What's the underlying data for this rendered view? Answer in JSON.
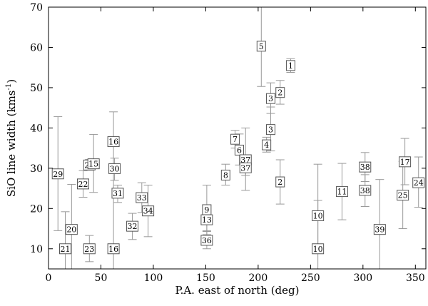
{
  "chart_data": {
    "type": "scatter",
    "title": "",
    "xlabel": "P.A. east of north (deg)",
    "ylabel": "SiO line width (kms",
    "ylabel_sup": "-1",
    "ylabel_close": ")",
    "xlim": [
      0,
      360
    ],
    "ylim": [
      5,
      70
    ],
    "xticks": [
      0,
      50,
      100,
      150,
      200,
      250,
      300,
      350
    ],
    "yticks": [
      10,
      20,
      30,
      40,
      50,
      60,
      70
    ],
    "grid": false,
    "marker": "numbered-box",
    "errorbar_color": "#999999",
    "points": [
      {
        "label": "29",
        "x": 9,
        "y": 28.6,
        "ylo": 14.5,
        "yhi": 42.8
      },
      {
        "label": "21",
        "x": 16,
        "y": 10.0,
        "ylo": 5.0,
        "yhi": 19.2
      },
      {
        "label": "20",
        "x": 22,
        "y": 14.8,
        "ylo": 5.0,
        "yhi": 26.0
      },
      {
        "label": "22",
        "x": 33,
        "y": 26.1,
        "ylo": 22.8,
        "yhi": 29.4
      },
      {
        "label": "23",
        "x": 39,
        "y": 10.0,
        "ylo": 6.8,
        "yhi": 13.3
      },
      {
        "label": "26",
        "x": 39,
        "y": 30.8,
        "ylo": 29.5,
        "yhi": 32.2
      },
      {
        "label": "15",
        "x": 43,
        "y": 31.1,
        "ylo": 24.0,
        "yhi": 38.4
      },
      {
        "label": "16",
        "x": 62,
        "y": 36.6,
        "ylo": 29.1,
        "yhi": 44.0
      },
      {
        "label": "30",
        "x": 63,
        "y": 29.9,
        "ylo": 27.0,
        "yhi": 32.5
      },
      {
        "label": "16",
        "x": 62,
        "y": 10.0,
        "ylo": 5.0,
        "yhi": 29.0
      },
      {
        "label": "31",
        "x": 66,
        "y": 23.8,
        "ylo": 21.5,
        "yhi": 25.8
      },
      {
        "label": "32",
        "x": 80,
        "y": 15.6,
        "ylo": 12.3,
        "yhi": 18.8
      },
      {
        "label": "33",
        "x": 89,
        "y": 22.7,
        "ylo": 19.0,
        "yhi": 26.4
      },
      {
        "label": "34",
        "x": 95,
        "y": 19.4,
        "ylo": 13.0,
        "yhi": 25.8
      },
      {
        "label": "9",
        "x": 151,
        "y": 19.7,
        "ylo": 13.5,
        "yhi": 25.8
      },
      {
        "label": "13",
        "x": 151,
        "y": 17.2,
        "ylo": 14.5,
        "yhi": 19.4
      },
      {
        "label": "36",
        "x": 151,
        "y": 12.1,
        "ylo": 10.0,
        "yhi": 14.3
      },
      {
        "label": "8",
        "x": 169,
        "y": 28.3,
        "ylo": 25.8,
        "yhi": 31.0
      },
      {
        "label": "7",
        "x": 178,
        "y": 37.2,
        "ylo": 35.0,
        "yhi": 39.4
      },
      {
        "label": "6",
        "x": 182,
        "y": 34.5,
        "ylo": 30.8,
        "yhi": 38.5
      },
      {
        "label": "37",
        "x": 188,
        "y": 32.1,
        "ylo": 24.5,
        "yhi": 40.0
      },
      {
        "label": "37",
        "x": 188,
        "y": 30.1,
        "ylo": 28.2,
        "yhi": 32.0
      },
      {
        "label": "5",
        "x": 203,
        "y": 60.3,
        "ylo": 50.3,
        "yhi": 70.0
      },
      {
        "label": "4",
        "x": 208,
        "y": 35.8,
        "ylo": 34.0,
        "yhi": 37.7
      },
      {
        "label": "3",
        "x": 212,
        "y": 47.3,
        "ylo": 43.6,
        "yhi": 51.2
      },
      {
        "label": "3",
        "x": 212,
        "y": 39.6,
        "ylo": 34.3,
        "yhi": 45.2
      },
      {
        "label": "2",
        "x": 221,
        "y": 48.8,
        "ylo": 45.9,
        "yhi": 51.8
      },
      {
        "label": "2",
        "x": 221,
        "y": 26.6,
        "ylo": 21.1,
        "yhi": 32.1
      },
      {
        "label": "1",
        "x": 231,
        "y": 55.5,
        "ylo": 53.8,
        "yhi": 57.2
      },
      {
        "label": "10",
        "x": 257,
        "y": 18.2,
        "ylo": 10.0,
        "yhi": 31.0
      },
      {
        "label": "10",
        "x": 257,
        "y": 10.0,
        "ylo": 5.0,
        "yhi": 22.0
      },
      {
        "label": "11",
        "x": 280,
        "y": 24.2,
        "ylo": 17.2,
        "yhi": 31.2
      },
      {
        "label": "38",
        "x": 302,
        "y": 30.3,
        "ylo": 26.7,
        "yhi": 33.9
      },
      {
        "label": "38",
        "x": 302,
        "y": 24.5,
        "ylo": 20.5,
        "yhi": 28.4
      },
      {
        "label": "39",
        "x": 316,
        "y": 14.8,
        "ylo": 5.0,
        "yhi": 27.2
      },
      {
        "label": "25",
        "x": 338,
        "y": 23.3,
        "ylo": 15.0,
        "yhi": 31.7
      },
      {
        "label": "17",
        "x": 340,
        "y": 31.6,
        "ylo": 25.9,
        "yhi": 37.4
      },
      {
        "label": "24",
        "x": 353,
        "y": 26.4,
        "ylo": 20.3,
        "yhi": 32.8
      }
    ]
  }
}
